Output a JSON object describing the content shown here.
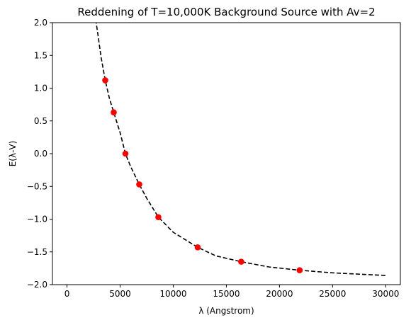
{
  "chart_data": {
    "type": "scatter",
    "title": "Reddening of T=10,000K Background Source with Av=2",
    "xlabel": "λ (Angstrom)",
    "ylabel": "E(λ-V)",
    "xlim": [
      -1370,
      31380
    ],
    "ylim": [
      -2.0,
      2.0
    ],
    "xticks": [
      0,
      5000,
      10000,
      15000,
      20000,
      25000,
      30000
    ],
    "xtick_labels": [
      "0",
      "5000",
      "10000",
      "15000",
      "20000",
      "25000",
      "30000"
    ],
    "yticks": [
      -2.0,
      -1.5,
      -1.0,
      -0.5,
      0.0,
      0.5,
      1.0,
      1.5,
      2.0
    ],
    "ytick_labels": [
      "−2.0",
      "−1.5",
      "−1.0",
      "−0.5",
      "0.0",
      "0.5",
      "1.0",
      "1.5",
      "2.0"
    ],
    "grid": false,
    "series": [
      {
        "kind": "scatter",
        "color": "#ff0000",
        "x": [
          3600,
          4400,
          5500,
          6800,
          8600,
          12300,
          16400,
          21900
        ],
        "y": [
          1.12,
          0.63,
          0.0,
          -0.47,
          -0.97,
          -1.43,
          -1.65,
          -1.78
        ]
      },
      {
        "kind": "line",
        "style": "dashed",
        "color": "#000000",
        "x": [
          2700,
          2900,
          3200,
          3600,
          4000,
          4400,
          5000,
          5500,
          6000,
          6800,
          7500,
          8600,
          10000,
          12300,
          14000,
          16400,
          19000,
          21900,
          25000,
          30000
        ],
        "y": [
          2.05,
          1.83,
          1.48,
          1.12,
          0.84,
          0.63,
          0.32,
          0.0,
          -0.2,
          -0.47,
          -0.68,
          -0.97,
          -1.2,
          -1.43,
          -1.56,
          -1.65,
          -1.73,
          -1.78,
          -1.82,
          -1.86
        ]
      }
    ]
  }
}
